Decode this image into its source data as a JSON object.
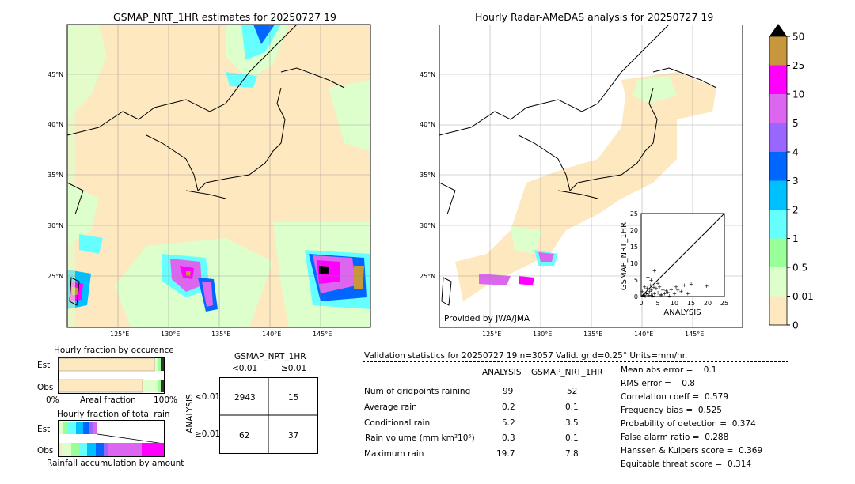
{
  "left_map": {
    "title": "GSMAP_NRT_1HR estimates for 20250727 19",
    "lat_labels": [
      "45°N",
      "40°N",
      "35°N",
      "30°N",
      "25°N"
    ],
    "lon_labels": [
      "125°E",
      "130°E",
      "135°E",
      "140°E",
      "145°E"
    ]
  },
  "right_map": {
    "title": "Hourly Radar-AMeDAS analysis for 20250727 19",
    "lat_labels": [
      "45°N",
      "40°N",
      "35°N",
      "30°N",
      "25°N"
    ],
    "lon_labels": [
      "125°E",
      "130°E",
      "135°E",
      "140°E",
      "145°E"
    ],
    "credit": "Provided by JWA/JMA"
  },
  "colorbar": {
    "labels": [
      "50",
      "25",
      "10",
      "5",
      "4",
      "3",
      "2",
      "1",
      "0.5",
      "0.01",
      "0"
    ],
    "colors": [
      "#c8963c",
      "#ff00ff",
      "#dd66f0",
      "#9966ff",
      "#0066ff",
      "#00c0ff",
      "#66ffff",
      "#99ff99",
      "#ddffcc",
      "#fde8c0"
    ]
  },
  "fraction_occurrence": {
    "title": "Hourly fraction by occurence",
    "row_labels": [
      "Est",
      "Obs"
    ],
    "axis_left": "0%",
    "axis_mid": "Areal fraction",
    "axis_right": "100%"
  },
  "fraction_total": {
    "title": "Hourly fraction of total rain",
    "row_labels": [
      "Est",
      "Obs"
    ],
    "caption": "Rainfall accumulation by amount"
  },
  "contingency": {
    "title": "GSMAP_NRT_1HR",
    "col_labels": [
      "<0.01",
      "≥0.01"
    ],
    "row_axis_label": "ANALYSIS",
    "row_labels": [
      "<0.01",
      "≥0.01"
    ],
    "cells": [
      [
        "2943",
        "15"
      ],
      [
        "62",
        "37"
      ]
    ]
  },
  "validation": {
    "header": "Validation statistics for 20250727 19  n=3057 Valid. grid=0.25° Units=mm/hr.",
    "col_analysis": "ANALYSIS",
    "col_gsmap": "GSMAP_NRT_1HR",
    "rows": [
      {
        "label": "Num of gridpoints raining",
        "analysis": "99",
        "gsmap": "52"
      },
      {
        "label": "Average rain",
        "analysis": "0.2",
        "gsmap": "0.1"
      },
      {
        "label": "Conditional rain",
        "analysis": "5.2",
        "gsmap": "3.5"
      },
      {
        "label": "Rain volume (mm km²10⁶)",
        "analysis": "0.3",
        "gsmap": "0.1"
      },
      {
        "label": "Maximum rain",
        "analysis": "19.7",
        "gsmap": "7.8"
      }
    ],
    "scores": [
      "Mean abs error =    0.1",
      "RMS error =    0.8",
      "Correlation coeff =  0.579",
      "Frequency bias =  0.525",
      "Probability of detection =  0.374",
      "False alarm ratio =  0.288",
      "Hanssen & Kuipers score =  0.369",
      "Equitable threat score =  0.314"
    ]
  },
  "chart_data": {
    "type": "scatter",
    "xlabel": "ANALYSIS",
    "ylabel": "GSMAP_NRT_1HR",
    "xlim": [
      0,
      25
    ],
    "ylim": [
      0,
      25
    ],
    "xticks": [
      "0",
      "5",
      "10",
      "15",
      "20",
      "25"
    ],
    "yticks": [
      "0",
      "5",
      "10",
      "15",
      "20",
      "25"
    ],
    "points": [
      [
        0.5,
        0.3
      ],
      [
        1,
        0.5
      ],
      [
        1.5,
        1
      ],
      [
        2,
        0.8
      ],
      [
        2.5,
        1.5
      ],
      [
        3,
        0.5
      ],
      [
        3,
        2
      ],
      [
        4,
        1
      ],
      [
        4.5,
        2.5
      ],
      [
        5,
        1.2
      ],
      [
        5.5,
        3
      ],
      [
        6,
        0.7
      ],
      [
        6.5,
        2
      ],
      [
        7,
        1
      ],
      [
        7.5,
        1.8
      ],
      [
        8,
        1.3
      ],
      [
        9,
        2.2
      ],
      [
        10,
        1
      ],
      [
        11,
        2
      ],
      [
        12,
        1.5
      ],
      [
        13,
        3.5
      ],
      [
        14,
        1
      ],
      [
        15,
        3.8
      ],
      [
        19.7,
        3.2
      ],
      [
        2,
        6
      ],
      [
        3,
        5
      ],
      [
        4,
        7.8
      ],
      [
        5,
        4
      ],
      [
        1,
        3
      ],
      [
        0.8,
        0.2
      ],
      [
        1.2,
        0.1
      ],
      [
        2.2,
        0.4
      ],
      [
        3.5,
        0.2
      ],
      [
        6,
        0.3
      ],
      [
        8.5,
        0.2
      ],
      [
        1.8,
        2.5
      ],
      [
        0.3,
        1.5
      ],
      [
        2.8,
        3.5
      ],
      [
        3.8,
        2.8
      ],
      [
        10.5,
        3
      ]
    ]
  }
}
